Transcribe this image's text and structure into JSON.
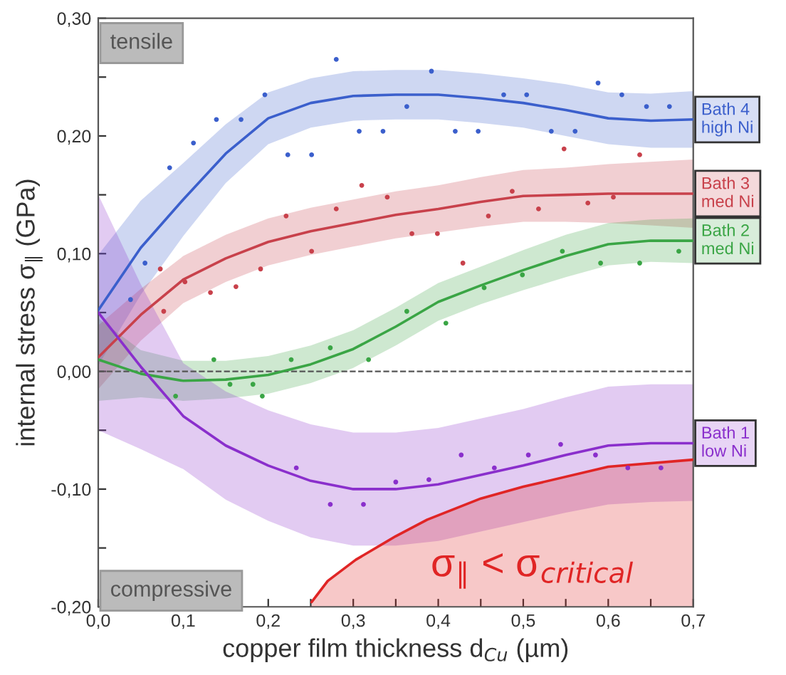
{
  "chart_data": {
    "type": "line",
    "xlabel": "copper film thickness d$_{Cu}$ (µm)",
    "ylabel": "internal stress σ$_{∥}$ (GPa)",
    "annotations": [
      "tensile",
      "compressive",
      "σ$_{∥}$ < σ$_{critical}$"
    ],
    "xlim": [
      0,
      0.7
    ],
    "xticks": [
      {
        "value": 0,
        "label": "0,0"
      },
      {
        "value": 0.05,
        "label": null
      },
      {
        "value": 0.1,
        "label": "0,1"
      },
      {
        "value": 0.15,
        "label": null
      },
      {
        "value": 0.2,
        "label": "0,2"
      },
      {
        "value": 0.25,
        "label": null
      },
      {
        "value": 0.3,
        "label": "0,3"
      },
      {
        "value": 0.35,
        "label": null
      },
      {
        "value": 0.4,
        "label": "0,4"
      },
      {
        "value": 0.45,
        "label": null
      },
      {
        "value": 0.5,
        "label": "0,5"
      },
      {
        "value": 0.55,
        "label": null
      },
      {
        "value": 0.6,
        "label": "0,6"
      },
      {
        "value": 0.65,
        "label": null
      },
      {
        "value": 0.7,
        "label": "0,7"
      }
    ],
    "ylim": [
      -0.2,
      0.3
    ],
    "yticks": [
      {
        "value": -0.2,
        "label": "-0,20"
      },
      {
        "value": -0.15,
        "label": null
      },
      {
        "value": -0.1,
        "label": "-0,10"
      },
      {
        "value": -0.05,
        "label": null
      },
      {
        "value": 0,
        "label": "0,00"
      },
      {
        "value": 0.05,
        "label": null
      },
      {
        "value": 0.1,
        "label": "0,10"
      },
      {
        "value": 0.15,
        "label": null
      },
      {
        "value": 0.2,
        "label": "0,20"
      },
      {
        "value": 0.25,
        "label": null
      },
      {
        "value": 0.3,
        "label": "0,30"
      }
    ],
    "ref_lines": [
      {
        "axis": "y",
        "value": 0,
        "color": "#555555",
        "line_style": "dashed"
      }
    ],
    "grid": false,
    "legend": false,
    "line_style": "solid",
    "series": [
      {
        "name": "Bath 4\nhigh Ni",
        "color": "#3b5fcc",
        "x": [
          0,
          0.05,
          0.1,
          0.15,
          0.2,
          0.25,
          0.3,
          0.35,
          0.4,
          0.45,
          0.5,
          0.55,
          0.6,
          0.65,
          0.7
        ],
        "values": [
          0.052,
          0.105,
          0.146,
          0.185,
          0.215,
          0.228,
          0.234,
          0.235,
          0.235,
          0.232,
          0.228,
          0.222,
          0.215,
          0.213,
          0.214
        ],
        "lower": [
          0.005,
          0.065,
          0.115,
          0.16,
          0.193,
          0.207,
          0.213,
          0.214,
          0.214,
          0.211,
          0.207,
          0.2,
          0.193,
          0.19,
          0.19
        ],
        "upper": [
          0.099,
          0.145,
          0.177,
          0.21,
          0.237,
          0.249,
          0.255,
          0.256,
          0.256,
          0.253,
          0.249,
          0.244,
          0.237,
          0.236,
          0.238
        ]
      },
      {
        "name": "Bath 3\nmed Ni",
        "color": "#c8414b",
        "x": [
          0,
          0.05,
          0.1,
          0.15,
          0.2,
          0.25,
          0.3,
          0.35,
          0.4,
          0.45,
          0.5,
          0.55,
          0.6,
          0.65,
          0.7
        ],
        "values": [
          0.012,
          0.048,
          0.078,
          0.096,
          0.11,
          0.119,
          0.126,
          0.133,
          0.138,
          0.144,
          0.149,
          0.15,
          0.151,
          0.151,
          0.151
        ],
        "lower": [
          -0.015,
          0.026,
          0.058,
          0.076,
          0.09,
          0.099,
          0.106,
          0.113,
          0.118,
          0.123,
          0.127,
          0.127,
          0.126,
          0.124,
          0.122
        ],
        "upper": [
          0.039,
          0.07,
          0.098,
          0.116,
          0.13,
          0.139,
          0.146,
          0.153,
          0.158,
          0.165,
          0.171,
          0.173,
          0.176,
          0.178,
          0.18
        ]
      },
      {
        "name": "Bath 2\nmed Ni",
        "color": "#3aa545",
        "x": [
          0,
          0.05,
          0.1,
          0.15,
          0.2,
          0.25,
          0.3,
          0.35,
          0.4,
          0.45,
          0.5,
          0.55,
          0.6,
          0.65,
          0.7
        ],
        "values": [
          0.01,
          -0.002,
          -0.008,
          -0.007,
          -0.003,
          0.006,
          0.019,
          0.038,
          0.059,
          0.073,
          0.086,
          0.098,
          0.108,
          0.111,
          0.111
        ],
        "lower": [
          -0.025,
          -0.022,
          -0.025,
          -0.023,
          -0.019,
          -0.01,
          0.003,
          0.022,
          0.043,
          0.057,
          0.069,
          0.08,
          0.09,
          0.093,
          0.092
        ],
        "upper": [
          0.045,
          0.018,
          0.009,
          0.009,
          0.013,
          0.022,
          0.035,
          0.054,
          0.075,
          0.089,
          0.103,
          0.116,
          0.126,
          0.129,
          0.13
        ]
      },
      {
        "name": "Bath 1\nlow Ni",
        "color": "#8a2fcc",
        "x": [
          0,
          0.05,
          0.1,
          0.15,
          0.2,
          0.25,
          0.3,
          0.35,
          0.4,
          0.45,
          0.5,
          0.55,
          0.6,
          0.65,
          0.7
        ],
        "values": [
          0.05,
          0.004,
          -0.038,
          -0.063,
          -0.08,
          -0.093,
          -0.1,
          -0.1,
          -0.096,
          -0.088,
          -0.08,
          -0.071,
          -0.063,
          -0.061,
          -0.061
        ],
        "lower": [
          -0.05,
          -0.066,
          -0.083,
          -0.109,
          -0.127,
          -0.141,
          -0.148,
          -0.148,
          -0.144,
          -0.136,
          -0.128,
          -0.12,
          -0.113,
          -0.111,
          -0.11
        ],
        "upper": [
          0.15,
          0.074,
          0.007,
          -0.017,
          -0.033,
          -0.045,
          -0.052,
          -0.052,
          -0.048,
          -0.04,
          -0.032,
          -0.022,
          -0.013,
          -0.011,
          -0.011
        ]
      },
      {
        "color": "#e02525",
        "x": [
          0.251,
          0.27,
          0.303,
          0.35,
          0.387,
          0.45,
          0.5,
          0.6,
          0.7
        ],
        "values": [
          -0.196,
          -0.178,
          -0.16,
          -0.14,
          -0.126,
          -0.108,
          -0.098,
          -0.081,
          -0.075
        ],
        "lower": [
          -0.2,
          -0.2,
          -0.2,
          -0.2,
          -0.2,
          -0.2,
          -0.2,
          -0.2,
          -0.2
        ],
        "upper": [
          -0.196,
          -0.178,
          -0.16,
          -0.14,
          -0.126,
          -0.108,
          -0.098,
          -0.081,
          -0.075
        ]
      },
      {
        "type": "scatter",
        "marker": "circle",
        "color": "#3b5fcc",
        "x": [
          0.038,
          0.055,
          0.084,
          0.112,
          0.139,
          0.168,
          0.196,
          0.223,
          0.251,
          0.28,
          0.307,
          0.335,
          0.363,
          0.392,
          0.42,
          0.447,
          0.477,
          0.504,
          0.533,
          0.561,
          0.588,
          0.616,
          0.645,
          0.672
        ],
        "values": [
          0.061,
          0.092,
          0.173,
          0.194,
          0.214,
          0.214,
          0.235,
          0.184,
          0.184,
          0.265,
          0.204,
          0.204,
          0.225,
          0.255,
          0.204,
          0.204,
          0.235,
          0.235,
          0.204,
          0.204,
          0.245,
          0.235,
          0.225,
          0.225
        ]
      },
      {
        "type": "scatter",
        "marker": "circle",
        "color": "#c8414b",
        "x": [
          0.073,
          0.077,
          0.102,
          0.132,
          0.162,
          0.191,
          0.221,
          0.251,
          0.28,
          0.31,
          0.34,
          0.369,
          0.399,
          0.429,
          0.459,
          0.487,
          0.518,
          0.548,
          0.576,
          0.606,
          0.637
        ],
        "values": [
          0.087,
          0.051,
          0.076,
          0.067,
          0.072,
          0.087,
          0.132,
          0.102,
          0.138,
          0.158,
          0.148,
          0.117,
          0.117,
          0.092,
          0.132,
          0.153,
          0.138,
          0.189,
          0.143,
          0.148,
          0.184
        ]
      },
      {
        "type": "scatter",
        "marker": "circle",
        "color": "#3aa545",
        "x": [
          0.091,
          0.136,
          0.155,
          0.182,
          0.193,
          0.227,
          0.273,
          0.318,
          0.363,
          0.409,
          0.454,
          0.499,
          0.546,
          0.591,
          0.637,
          0.683
        ],
        "values": [
          -0.021,
          0.01,
          -0.011,
          -0.011,
          -0.021,
          0.01,
          0.02,
          0.01,
          0.051,
          0.041,
          0.071,
          0.082,
          0.102,
          0.092,
          0.092,
          0.102
        ]
      },
      {
        "type": "scatter",
        "marker": "circle",
        "color": "#8a2fcc",
        "x": [
          0.233,
          0.273,
          0.312,
          0.35,
          0.389,
          0.427,
          0.466,
          0.506,
          0.544,
          0.585,
          0.623,
          0.662
        ],
        "values": [
          -0.082,
          -0.113,
          -0.113,
          -0.094,
          -0.092,
          -0.071,
          -0.082,
          -0.071,
          -0.062,
          -0.071,
          -0.082,
          -0.082
        ]
      }
    ]
  }
}
